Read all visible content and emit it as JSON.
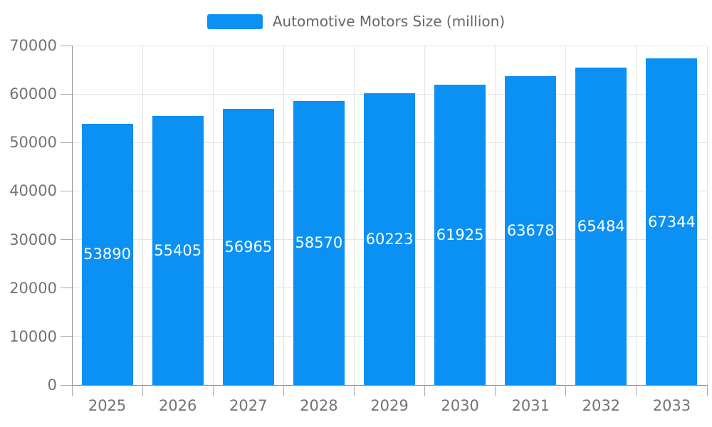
{
  "legend": {
    "label": "Automotive Motors Size (million)"
  },
  "chart_data": {
    "type": "bar",
    "title": "",
    "series_name": "Automotive Motors Size (million)",
    "categories": [
      "2025",
      "2026",
      "2027",
      "2028",
      "2029",
      "2030",
      "2031",
      "2032",
      "2033"
    ],
    "values": [
      53890,
      55405,
      56965,
      58570,
      60223,
      61925,
      63678,
      65484,
      67344
    ],
    "xlabel": "",
    "ylabel": "",
    "ylim": [
      0,
      70000
    ],
    "yticks": [
      0,
      10000,
      20000,
      30000,
      40000,
      50000,
      60000,
      70000
    ],
    "grid": true,
    "legend_position": "top-center",
    "value_label_position": "inside-center"
  },
  "colors": {
    "bar": "#0b90f3",
    "grid_line": "#e4e4e4",
    "axis_line": "#8f8f8f",
    "tick": "#ababab",
    "axis_label": "#737373",
    "legend_text": "#666666",
    "value_label": "#ffffff",
    "background": "#ffffff"
  }
}
